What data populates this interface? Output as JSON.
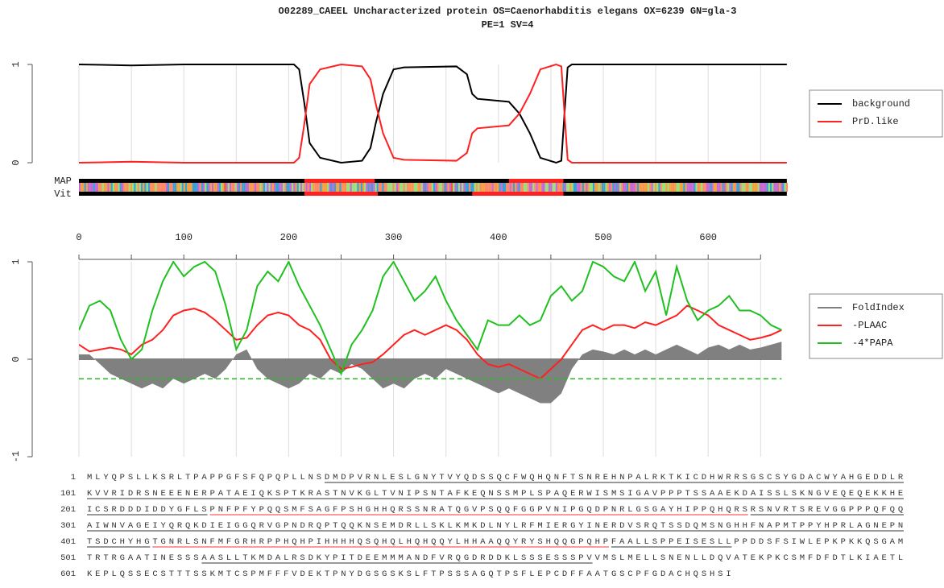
{
  "chart_data": [
    {
      "type": "line",
      "title": "O02289_CAEEL Uncharacterized protein OS=Caenorhabditis elegans OX=6239 GN=gla-3",
      "subtitle": "PE=1 SV=4",
      "x": [
        0,
        50,
        100,
        150,
        200,
        205,
        210,
        215,
        220,
        230,
        250,
        270,
        278,
        283,
        290,
        300,
        310,
        360,
        370,
        375,
        380,
        400,
        410,
        420,
        430,
        440,
        455,
        460,
        463,
        466,
        470,
        600,
        675
      ],
      "series": [
        {
          "name": "background",
          "color": "#000000",
          "values": [
            1,
            0.99,
            1,
            1,
            1,
            1,
            0.95,
            0.6,
            0.2,
            0.05,
            0,
            0.02,
            0.15,
            0.4,
            0.7,
            0.95,
            0.97,
            0.98,
            0.9,
            0.7,
            0.65,
            0.63,
            0.62,
            0.5,
            0.3,
            0.05,
            0,
            0.02,
            0.5,
            0.97,
            1,
            1,
            1
          ]
        },
        {
          "name": "PrD.like",
          "color": "#ff2020",
          "values": [
            0,
            0.01,
            0,
            0,
            0,
            0,
            0.05,
            0.4,
            0.8,
            0.95,
            1,
            0.98,
            0.85,
            0.6,
            0.3,
            0.05,
            0.03,
            0.02,
            0.1,
            0.3,
            0.35,
            0.37,
            0.38,
            0.5,
            0.7,
            0.95,
            1,
            0.98,
            0.5,
            0.03,
            0,
            0,
            0
          ]
        }
      ],
      "xlim": [
        0,
        680
      ],
      "ylim": [
        0,
        1
      ],
      "yticks": [
        0,
        1
      ],
      "xticks": [
        0,
        100,
        200,
        300,
        400,
        500,
        600
      ],
      "tracks": [
        {
          "name": "MAP",
          "regions": [
            [
              215,
              282
            ],
            [
              410,
              462
            ]
          ],
          "color": "#ff2020"
        },
        {
          "name": "Vit",
          "regions": [
            [
              215,
              285
            ],
            [
              375,
              462
            ]
          ],
          "color": "#ff2020"
        }
      ]
    },
    {
      "type": "line",
      "x": [
        0,
        10,
        20,
        30,
        40,
        50,
        60,
        70,
        80,
        90,
        100,
        110,
        120,
        130,
        140,
        150,
        160,
        170,
        180,
        190,
        200,
        210,
        220,
        230,
        240,
        250,
        260,
        270,
        280,
        290,
        300,
        310,
        320,
        330,
        340,
        350,
        360,
        370,
        380,
        390,
        400,
        410,
        420,
        430,
        440,
        450,
        460,
        470,
        480,
        490,
        500,
        510,
        520,
        530,
        540,
        550,
        560,
        570,
        580,
        590,
        600,
        610,
        620,
        630,
        640,
        650,
        660,
        670
      ],
      "series": [
        {
          "name": "FoldIndex",
          "color": "#808080",
          "fill": true,
          "values": [
            0.05,
            0.05,
            -0.05,
            -0.15,
            -0.2,
            -0.25,
            -0.3,
            -0.25,
            -0.3,
            -0.2,
            -0.25,
            -0.2,
            -0.15,
            -0.2,
            -0.1,
            0.05,
            0.1,
            -0.1,
            -0.2,
            -0.25,
            -0.3,
            -0.25,
            -0.15,
            -0.2,
            -0.1,
            -0.15,
            -0.05,
            -0.1,
            -0.2,
            -0.3,
            -0.25,
            -0.3,
            -0.2,
            -0.15,
            -0.2,
            -0.1,
            -0.15,
            -0.2,
            -0.25,
            -0.3,
            -0.35,
            -0.3,
            -0.35,
            -0.4,
            -0.45,
            -0.45,
            -0.35,
            -0.1,
            0.05,
            0.1,
            0.08,
            0.05,
            0.1,
            0.05,
            0.1,
            0.05,
            0.1,
            0.15,
            0.1,
            0.05,
            0.12,
            0.15,
            0.1,
            0.15,
            0.1,
            0.12,
            0.15,
            0.18
          ]
        },
        {
          "name": "-PLAAC",
          "color": "#ff2020",
          "values": [
            0.15,
            0.08,
            0.1,
            0.12,
            0.1,
            0.05,
            0.15,
            0.2,
            0.3,
            0.45,
            0.5,
            0.52,
            0.48,
            0.4,
            0.3,
            0.2,
            0.22,
            0.35,
            0.45,
            0.48,
            0.45,
            0.35,
            0.3,
            0.2,
            0,
            -0.1,
            -0.08,
            -0.05,
            -0.03,
            0.05,
            0.15,
            0.25,
            0.3,
            0.25,
            0.3,
            0.35,
            0.3,
            0.2,
            0.05,
            -0.05,
            -0.08,
            -0.05,
            -0.1,
            -0.15,
            -0.2,
            -0.1,
            0,
            0.15,
            0.3,
            0.35,
            0.3,
            0.35,
            0.35,
            0.32,
            0.38,
            0.35,
            0.4,
            0.45,
            0.55,
            0.5,
            0.45,
            0.35,
            0.3,
            0.25,
            0.2,
            0.22,
            0.25,
            0.3
          ]
        },
        {
          "name": "-4*PAPA",
          "color": "#20c020",
          "values": [
            0.3,
            0.55,
            0.6,
            0.5,
            0.2,
            0,
            0.1,
            0.5,
            0.8,
            1,
            0.85,
            0.95,
            1,
            0.9,
            0.55,
            0.1,
            0.3,
            0.75,
            0.9,
            0.8,
            1,
            0.75,
            0.55,
            0.35,
            0.1,
            -0.15,
            0.15,
            0.3,
            0.5,
            0.85,
            1,
            0.8,
            0.6,
            0.7,
            0.85,
            0.6,
            0.4,
            0.25,
            0.1,
            0.4,
            0.35,
            0.35,
            0.45,
            0.35,
            0.4,
            0.65,
            0.75,
            0.6,
            0.7,
            1,
            0.95,
            0.85,
            0.8,
            1,
            0.7,
            0.9,
            0.45,
            0.95,
            0.6,
            0.4,
            0.5,
            0.55,
            0.65,
            0.5,
            0.5,
            0.45,
            0.35,
            0.3
          ]
        }
      ],
      "xlim": [
        0,
        680
      ],
      "ylim": [
        -1,
        1
      ],
      "yticks": [
        -1,
        0,
        1
      ],
      "threshold": -0.2,
      "threshold_color": "#20c020"
    }
  ],
  "sequence": [
    {
      "number": "1",
      "segments": [
        {
          "text": "MLYQPSLLKSRLTPAPPGFSFQPQPLLNS",
          "style": "plain"
        },
        {
          "text": "DMDPVRNLESLGNYTVYQDSSQCFWQHQNFTSNREHNPALRKTKICDHWRRSGSCSYGDACWYAHGEDDLR",
          "style": "underline"
        }
      ]
    },
    {
      "number": "101",
      "segments": [
        {
          "text": "KVVRIDRSNEEENERPATAEIQKSPTKRASTNVKGLTVNIPSNTAFKEQNSSMPLSPAQERWISMSIGAVPPPTSSAAEKDAISSLSKNGVEQEQEKKHE",
          "style": "underline"
        }
      ]
    },
    {
      "number": "201",
      "segments": [
        {
          "text": "ICSRDDDIDDYGFLS",
          "style": "underline"
        },
        {
          "text": "PNFPFYPQQSMFSAGFPSHGHHQRSSNRATQGVPSQQFGGPVNIPGQDPNRLGSGAYHIPPQHQRS",
          "style": "red"
        },
        {
          "text": "RSNVRTSREVGGPPPQFQQ",
          "style": "underline"
        }
      ]
    },
    {
      "number": "301",
      "segments": [
        {
          "text": "AIWNVAGEIYQRQKDIEIGGQRVGPNDRQPTQQKNSEMDRLLSKLKMKDLNYLRFMIERGYINERDVSRQTSSDQMSNGHHFNAPMTPPYHPRLAGNEPN",
          "style": "underline"
        }
      ]
    },
    {
      "number": "401",
      "segments": [
        {
          "text": "TSDCHYHG",
          "style": "underline"
        },
        {
          "text": "TGNRLSNFMFGRHRPPHQHPIHHHHQSQHQLHQHQQYLHHAAQQYRYSHQQGPQHP",
          "style": "red"
        },
        {
          "text": "FAALLSPPEISESLL",
          "style": "underline"
        },
        {
          "text": "PPDDSFSIWLEPKPKKQSGAM",
          "style": "plain"
        }
      ]
    },
    {
      "number": "501",
      "segments": [
        {
          "text": "TRTRGAATINESSS",
          "style": "plain"
        },
        {
          "text": "AASLLTKMDALRSDKYPITDEEMMMANDFVRQGDRDDKLSSSESSSPV",
          "style": "underline"
        },
        {
          "text": "VMSLMELLSNENLLDQVATEKPKCSMFDFDTLKIAETL",
          "style": "plain"
        }
      ]
    },
    {
      "number": "601",
      "segments": [
        {
          "text": "KEPLQSSECSTTTSSKMTCSPMFFFVDEKTPNYDGSGSKSLFTPSSSAGQTPSFLEPCDFFAATGSCPFGDACHQSHSI",
          "style": "plain"
        }
      ]
    }
  ]
}
